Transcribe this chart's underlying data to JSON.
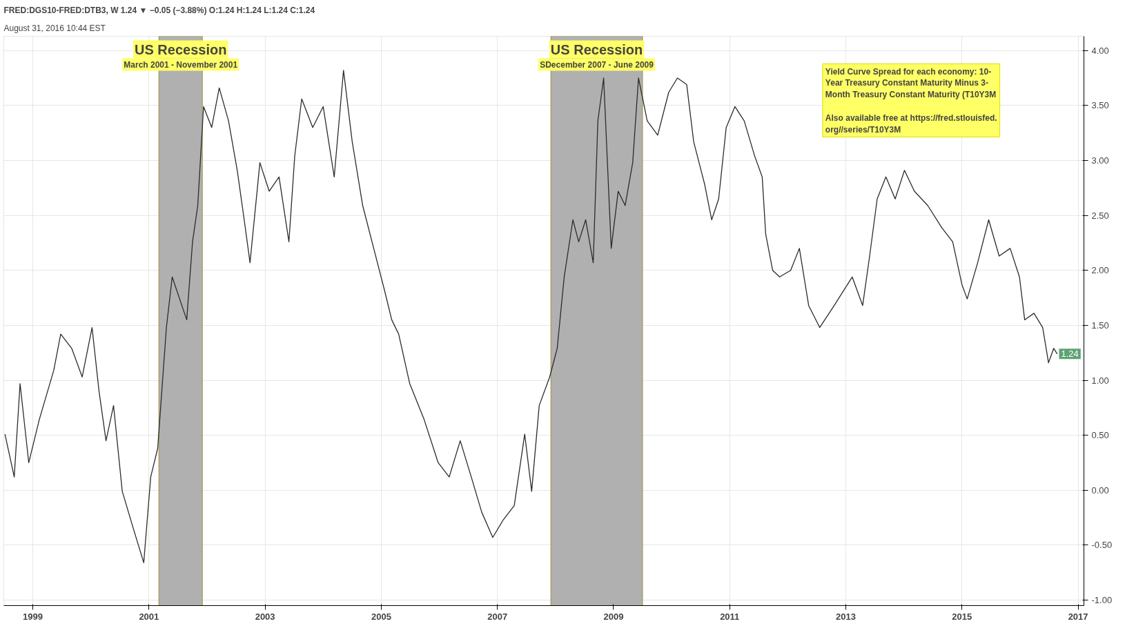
{
  "chart_data": {
    "type": "line",
    "title": "FRED:DGS10-FRED:DTB3, W  1.24 ▼ −0.05 (−3.88%)  O:1.24 H:1.24 L:1.24 C:1.24",
    "subtitle": "August 31, 2016 10:44 EST",
    "x": [
      1998.52,
      1998.68,
      1998.78,
      1998.93,
      1999.11,
      1999.36,
      1999.48,
      1999.67,
      1999.85,
      2000.02,
      2000.14,
      2000.26,
      2000.39,
      2000.54,
      2000.72,
      2000.91,
      2001.03,
      2001.15,
      2001.3,
      2001.4,
      2001.65,
      2001.75,
      2001.84,
      2001.94,
      2002.08,
      2002.21,
      2002.37,
      2002.52,
      2002.64,
      2002.74,
      2002.91,
      2003.07,
      2003.24,
      2003.41,
      2003.51,
      2003.63,
      2003.82,
      2004.0,
      2004.19,
      2004.35,
      2004.5,
      2004.68,
      2004.87,
      2005.06,
      2005.18,
      2005.3,
      2005.49,
      2005.74,
      2005.98,
      2006.17,
      2006.36,
      2006.55,
      2006.73,
      2006.92,
      2007.1,
      2007.29,
      2007.47,
      2007.59,
      2007.72,
      2007.9,
      2008.03,
      2008.15,
      2008.3,
      2008.4,
      2008.52,
      2008.65,
      2008.73,
      2008.83,
      2008.96,
      2009.08,
      2009.2,
      2009.33,
      2009.43,
      2009.58,
      2009.76,
      2009.95,
      2010.1,
      2010.26,
      2010.38,
      2010.57,
      2010.69,
      2010.81,
      2010.94,
      2011.09,
      2011.25,
      2011.43,
      2011.56,
      2011.62,
      2011.74,
      2011.86,
      2012.05,
      2012.2,
      2012.36,
      2012.55,
      2012.8,
      2013.11,
      2013.29,
      2013.41,
      2013.54,
      2013.69,
      2013.85,
      2014.01,
      2014.18,
      2014.41,
      2014.65,
      2014.84,
      2015.0,
      2015.09,
      2015.27,
      2015.46,
      2015.64,
      2015.83,
      2015.99,
      2016.08,
      2016.24,
      2016.39,
      2016.49,
      2016.58,
      2016.64
    ],
    "series": [
      {
        "color": "#2b2b2b",
        "values": [
          0.51,
          0.12,
          0.97,
          0.25,
          0.64,
          1.09,
          1.42,
          1.29,
          1.03,
          1.48,
          0.9,
          0.45,
          0.77,
          -0.01,
          -0.33,
          -0.66,
          0.12,
          0.38,
          1.48,
          1.94,
          1.55,
          2.26,
          2.59,
          3.49,
          3.3,
          3.66,
          3.36,
          2.91,
          2.46,
          2.07,
          2.98,
          2.72,
          2.85,
          2.26,
          3.04,
          3.56,
          3.3,
          3.49,
          2.85,
          3.82,
          3.17,
          2.59,
          2.2,
          1.81,
          1.55,
          1.42,
          0.97,
          0.64,
          0.25,
          0.12,
          0.45,
          0.12,
          -0.2,
          -0.43,
          -0.27,
          -0.14,
          0.51,
          -0.01,
          0.77,
          1.03,
          1.29,
          1.94,
          2.46,
          2.26,
          2.46,
          2.07,
          3.36,
          3.75,
          2.2,
          2.72,
          2.59,
          2.98,
          3.75,
          3.36,
          3.23,
          3.62,
          3.75,
          3.69,
          3.17,
          2.78,
          2.46,
          2.65,
          3.3,
          3.49,
          3.36,
          3.04,
          2.85,
          2.33,
          2.0,
          1.94,
          2.0,
          2.2,
          1.68,
          1.48,
          1.68,
          1.94,
          1.68,
          2.13,
          2.65,
          2.85,
          2.65,
          2.91,
          2.72,
          2.59,
          2.39,
          2.26,
          1.87,
          1.74,
          2.07,
          2.46,
          2.13,
          2.2,
          1.94,
          1.55,
          1.61,
          1.48,
          1.16,
          1.29,
          1.24
        ]
      }
    ],
    "xlim": [
      1998.5,
      2017.1
    ],
    "xticks": [
      1999,
      2001,
      2003,
      2005,
      2007,
      2009,
      2011,
      2013,
      2015,
      2017
    ],
    "ylim": [
      -1.05,
      4.13
    ],
    "yticks": [
      {
        "value": -1,
        "label": "-1.00"
      },
      {
        "value": -0.5,
        "label": "-0.50"
      },
      {
        "value": 0,
        "label": "0.00"
      },
      {
        "value": 0.5,
        "label": "0.50"
      },
      {
        "value": 1,
        "label": "1.00"
      },
      {
        "value": 1.5,
        "label": "1.50"
      },
      {
        "value": 2,
        "label": "2.00"
      },
      {
        "value": 2.5,
        "label": "2.50"
      },
      {
        "value": 3,
        "label": "3.00"
      },
      {
        "value": 3.5,
        "label": "3.50"
      },
      {
        "value": 4,
        "label": "4.00"
      }
    ],
    "bands": [
      {
        "axis": "x",
        "from": 2001.17,
        "to": 2001.92,
        "color": "#b0b0b0"
      },
      {
        "axis": "x",
        "from": 2007.92,
        "to": 2009.5,
        "color": "#b0b0b0"
      }
    ],
    "annotations": [
      "US Recession",
      "March 2001 - November 2001",
      "US Recession",
      "SDecember 2007 - June 2009",
      "1.24",
      "Yield Curve Spread for each economy:   10-\nYear Treasury Constant Maturity Minus 3-\nMonth Treasury Constant Maturity (T10Y3M\n\nAlso available free at https://fred.stlouisfed.\norg//series/T10Y3M"
    ],
    "grid": true
  }
}
